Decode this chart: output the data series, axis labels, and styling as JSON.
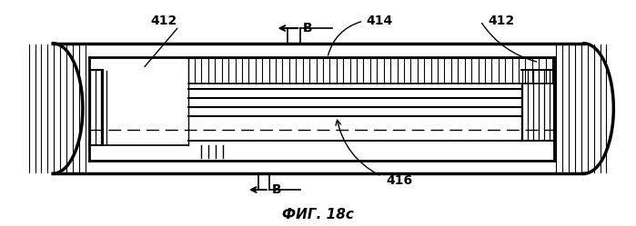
{
  "title": "ФИГ. 18c",
  "bg_color": "#ffffff",
  "line_color": "#000000",
  "fig_width": 6.99,
  "fig_height": 2.49,
  "dpi": 100
}
